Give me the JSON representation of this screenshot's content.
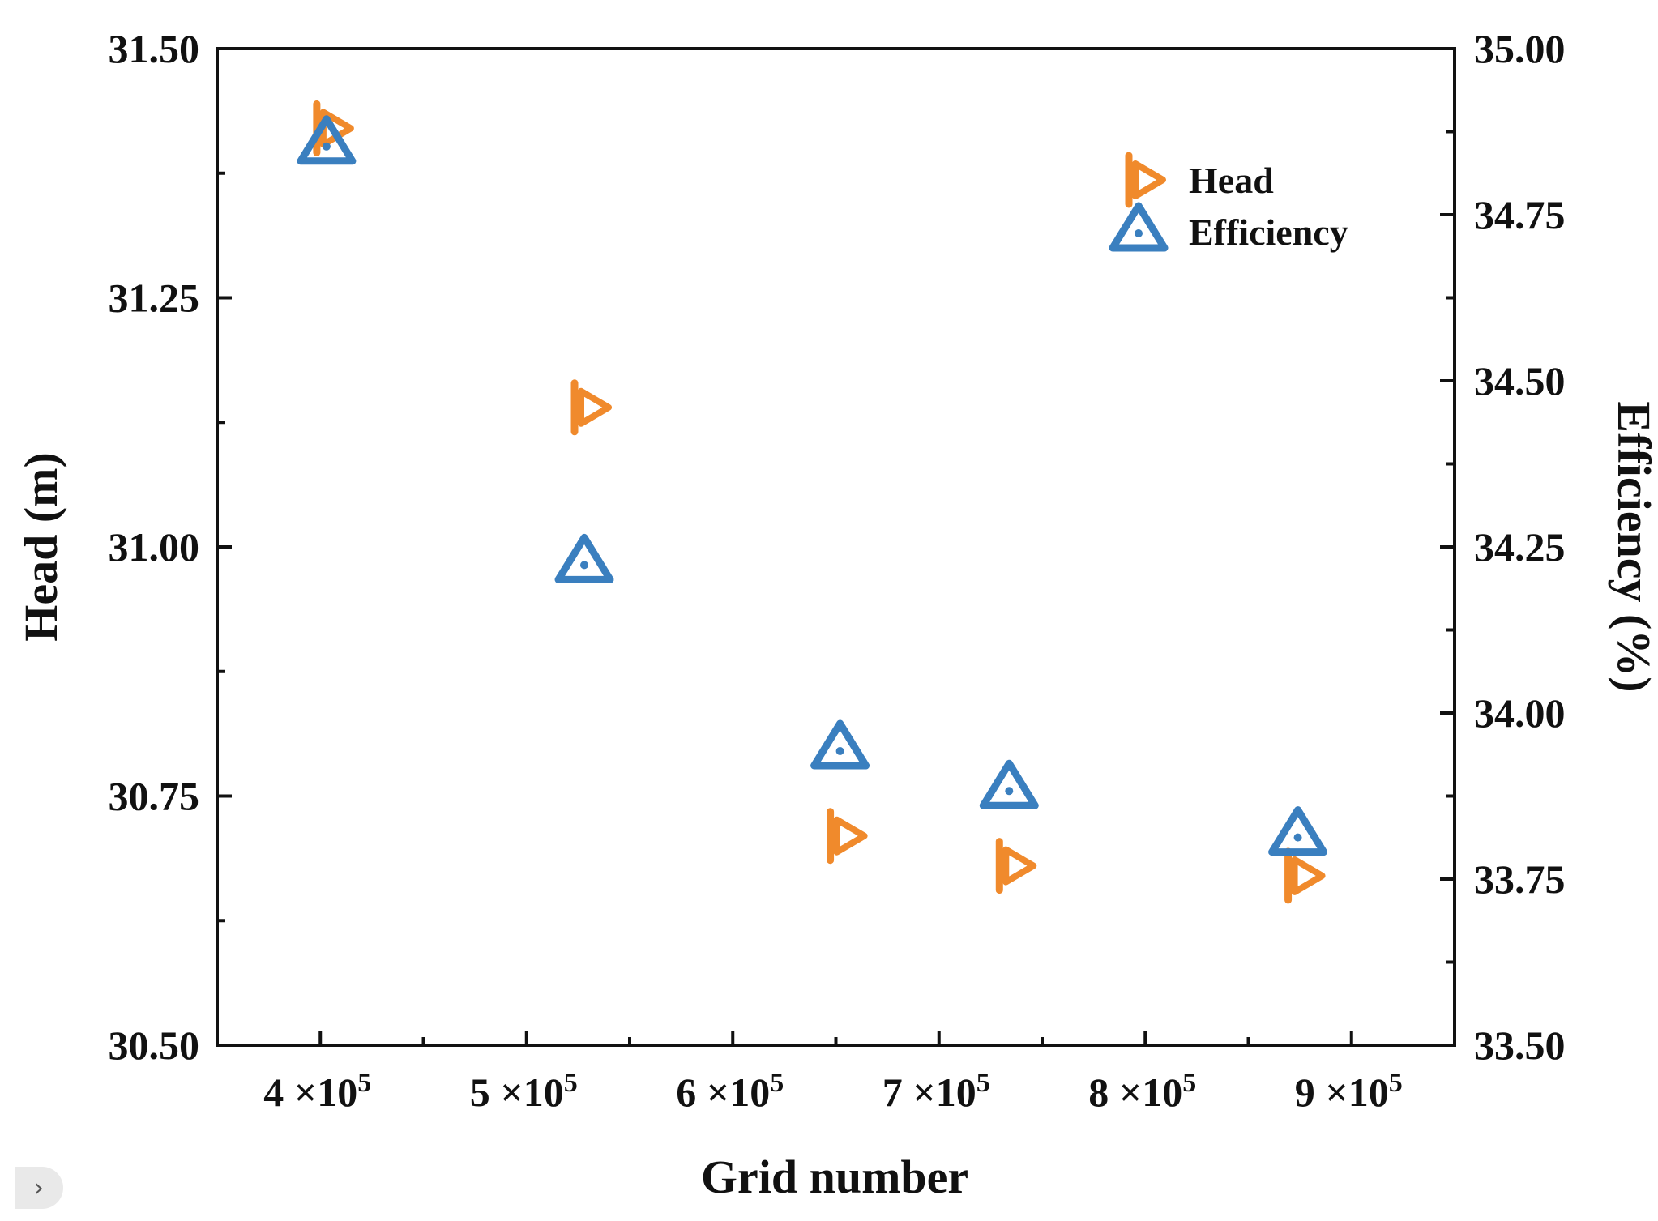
{
  "chart_data": {
    "type": "scatter",
    "title": "",
    "xlabel": "Grid number",
    "ylabel_left": "Head (m)",
    "ylabel_right": "Efficiency (%)",
    "x_ticks": [
      {
        "value": 4,
        "base": "4 ×10",
        "exp": "5"
      },
      {
        "value": 5,
        "base": "5 ×10",
        "exp": "5"
      },
      {
        "value": 6,
        "base": "6 ×10",
        "exp": "5"
      },
      {
        "value": 7,
        "base": "7 ×10",
        "exp": "5"
      },
      {
        "value": 8,
        "base": "8 ×10",
        "exp": "5"
      },
      {
        "value": 9,
        "base": "9 ×10",
        "exp": "5"
      }
    ],
    "xlim": [
      3.5,
      9.5
    ],
    "ylim_left": [
      30.5,
      31.5
    ],
    "ylim_right": [
      33.5,
      35.0
    ],
    "left_ticks": [
      "30.50",
      "30.75",
      "31.00",
      "31.25",
      "31.50"
    ],
    "right_ticks": [
      "33.50",
      "33.75",
      "34.00",
      "34.25",
      "34.50",
      "34.75",
      "35.00"
    ],
    "series": [
      {
        "name": "Head",
        "axis": "left",
        "marker": "right-triangle",
        "color": "#F08A2C",
        "points": [
          {
            "x": 4.03,
            "y": 31.42
          },
          {
            "x": 5.28,
            "y": 31.14
          },
          {
            "x": 6.52,
            "y": 30.71
          },
          {
            "x": 7.34,
            "y": 30.68
          },
          {
            "x": 8.74,
            "y": 30.67
          }
        ]
      },
      {
        "name": "Efficiency",
        "axis": "right",
        "marker": "triangle",
        "color": "#3A7FBF",
        "points": [
          {
            "x": 4.03,
            "y": 34.86
          },
          {
            "x": 5.28,
            "y": 34.23
          },
          {
            "x": 6.52,
            "y": 33.95
          },
          {
            "x": 7.34,
            "y": 33.89
          },
          {
            "x": 8.74,
            "y": 33.82
          }
        ]
      }
    ],
    "legend": {
      "position": "top-right",
      "entries": [
        "Head",
        "Efficiency"
      ]
    },
    "grid": false
  },
  "ui": {
    "expand_tab_glyph": "›"
  }
}
